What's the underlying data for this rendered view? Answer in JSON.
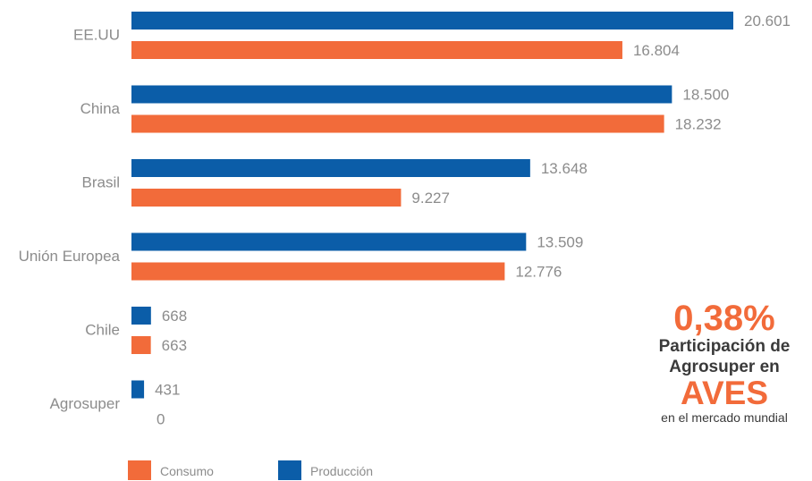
{
  "chart_data": {
    "type": "bar",
    "orientation": "horizontal",
    "categories": [
      "EE.UU",
      "China",
      "Brasil",
      "Unión Europea",
      "Chile",
      "Agrosuper"
    ],
    "series": [
      {
        "name": "Producción",
        "color": "#0B5DA8",
        "values": [
          20601,
          18500,
          13648,
          13509,
          668,
          431
        ],
        "labels": [
          "20.601",
          "18.500",
          "13.648",
          "13.509",
          "668",
          "431"
        ]
      },
      {
        "name": "Consumo",
        "color": "#F26B3A",
        "values": [
          16804,
          18232,
          9227,
          12776,
          663,
          0
        ],
        "labels": [
          "16.804",
          "18.232",
          "9.227",
          "12.776",
          "663",
          "0"
        ]
      }
    ],
    "xlim": [
      0,
      20601
    ],
    "grid": false,
    "legend": {
      "position": "bottom-left",
      "items": [
        {
          "name": "Consumo",
          "color": "#F26B3A"
        },
        {
          "name": "Producción",
          "color": "#0B5DA8"
        }
      ]
    }
  },
  "callout": {
    "percent": "0,38%",
    "line1": "Participación de",
    "line2": "Agrosuper en",
    "highlight": "AVES",
    "footer": "en el mercado mundial"
  },
  "colors": {
    "accent": "#F26B3A",
    "primary": "#0B5DA8",
    "label": "#8c8c8c",
    "text": "#3a3a3a"
  }
}
